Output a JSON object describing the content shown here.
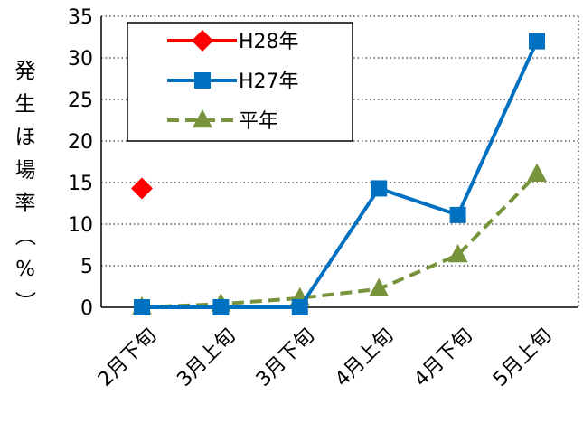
{
  "chart_data": {
    "type": "line",
    "title": "",
    "xlabel": "",
    "ylabel": "発生ほ場率（%）",
    "categories": [
      "2月下旬",
      "3月上旬",
      "3月下旬",
      "4月上旬",
      "4月下旬",
      "5月上旬"
    ],
    "ylim": [
      0,
      35
    ],
    "yticks": [
      0,
      5,
      10,
      15,
      20,
      25,
      30,
      35
    ],
    "grid": "horizontal dotted",
    "legend_position": "top-left",
    "series": [
      {
        "name": "H28年",
        "values": [
          14.3,
          null,
          null,
          null,
          null,
          null
        ],
        "color": "#ff0000",
        "marker": "diamond",
        "dash": "solid"
      },
      {
        "name": "H27年",
        "values": [
          0,
          0,
          0,
          14.3,
          11.1,
          32.0
        ],
        "color": "#0070c0",
        "marker": "square",
        "dash": "solid"
      },
      {
        "name": "平年",
        "values": [
          0,
          0.4,
          1.1,
          2.2,
          6.3,
          16.0
        ],
        "color": "#77933c",
        "marker": "triangle",
        "dash": "dashed"
      }
    ]
  }
}
